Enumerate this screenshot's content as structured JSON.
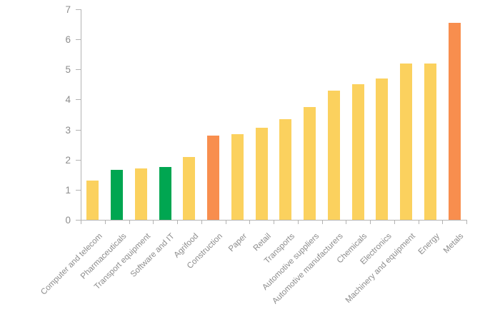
{
  "chart_data": {
    "type": "bar",
    "title": "",
    "xlabel": "",
    "ylabel": "",
    "categories": [
      "Computer and telecom",
      "Pharmaceuticals",
      "Transport equipment",
      "Software and IT",
      "Agrifood",
      "Construction",
      "Paper",
      "Retail",
      "Transports",
      "Automotive suppliers",
      "Automotive manufacturers",
      "Chemicals",
      "Electronics",
      "Machinery and equipment",
      "Energy",
      "Metals"
    ],
    "values": [
      1.3,
      1.65,
      1.7,
      1.75,
      2.1,
      2.8,
      2.85,
      3.05,
      3.35,
      3.75,
      4.3,
      4.5,
      4.7,
      5.2,
      5.2,
      6.55
    ],
    "bar_color_roles": [
      "yellow",
      "green",
      "yellow",
      "green",
      "yellow",
      "orange",
      "yellow",
      "yellow",
      "yellow",
      "yellow",
      "yellow",
      "yellow",
      "yellow",
      "yellow",
      "yellow",
      "orange"
    ],
    "palette": {
      "yellow": "#FBD15E",
      "green": "#00A651",
      "orange": "#F88E4E"
    },
    "ylim": [
      0,
      7
    ],
    "yticks": [
      0,
      1,
      2,
      3,
      4,
      5,
      6,
      7
    ],
    "grid": false,
    "legend": false,
    "x_label_rotation_deg": 45,
    "axis_color": "#b3b3b3",
    "text_color": "#8c8c8c"
  }
}
